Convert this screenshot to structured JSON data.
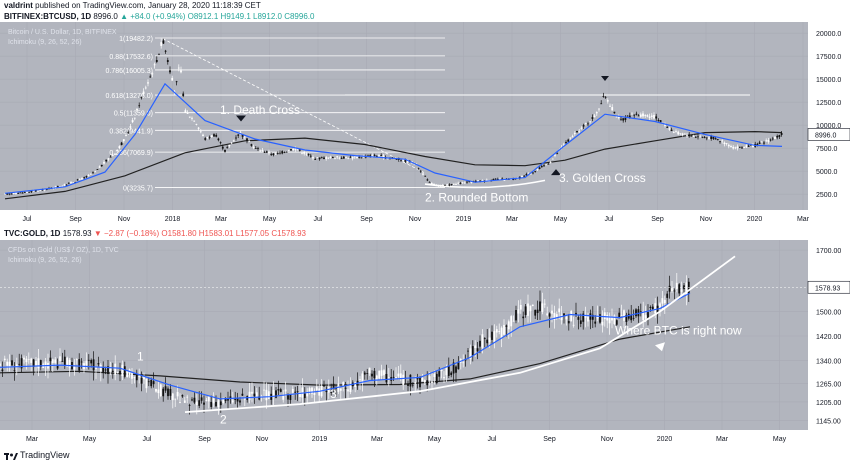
{
  "header": {
    "user": "valdrint",
    "published": "published on TradingView.com, January 28, 2020 11:18:39 CET"
  },
  "btc_header": {
    "symbol": "BITFINEX:BTCUSD, 1D",
    "last": "8996.0",
    "change": "+84.0 (+0.94%)",
    "o": "O8912.1",
    "h": "H9149.1",
    "l": "L8912.0",
    "c": "C8996.0"
  },
  "gold_header": {
    "symbol": "TVC:GOLD, 1D",
    "last": "1578.93",
    "change": "−2.87 (−0.18%)",
    "o": "O1581.80",
    "h": "H1583.01",
    "l": "L1577.05",
    "c": "C1578.93"
  },
  "footer": {
    "brand": "TradingView"
  },
  "colors": {
    "panel_bg": "#b2b5be",
    "ma_blue": "#2962ff",
    "ma_black": "#222222",
    "up": "#26a69a",
    "down": "#ef5350"
  },
  "chart_data": [
    {
      "type": "line",
      "name": "btc",
      "legend": [
        "Bitcoin / U.S. Dollar, 1D, BITFINEX",
        "Ichimoku (9, 26, 52, 26)"
      ],
      "x_ticks": [
        "Jul",
        "Sep",
        "Nov",
        "2018",
        "Mar",
        "May",
        "Jul",
        "Sep",
        "Nov",
        "2019",
        "Mar",
        "May",
        "Jul",
        "Sep",
        "Nov",
        "2020",
        "Mar"
      ],
      "y_ticks": [
        "20000.0",
        "17500.0",
        "15000.0",
        "12500.0",
        "10000.0",
        "7500.0",
        "5000.0",
        "2500.0"
      ],
      "ylim": [
        1000,
        21000
      ],
      "last_price_label": "8996.0",
      "fib_levels": [
        {
          "label": "1(19482.2)",
          "value": 19482.2
        },
        {
          "label": "0.88(17532.6)",
          "value": 17532.6
        },
        {
          "label": "0.786(16005.3)",
          "value": 16005.3
        },
        {
          "label": "0.618(13276.0)",
          "value": 13276.0
        },
        {
          "label": "0.5(11359.0)",
          "value": 11359.0
        },
        {
          "label": "0.382(9441.9)",
          "value": 9441.9
        },
        {
          "label": "0.236(7069.9)",
          "value": 7069.9
        },
        {
          "label": "0(3235.7)",
          "value": 3235.7
        }
      ],
      "annotations": [
        "1. Death Cross",
        "2. Rounded Bottom",
        "3. Golden Cross"
      ],
      "series": [
        {
          "name": "price",
          "x": [
            0,
            20,
            40,
            60,
            80,
            90,
            100,
            110,
            120,
            130,
            140,
            150,
            158,
            165,
            170,
            175,
            180,
            190,
            200,
            210,
            220,
            235,
            250,
            270,
            290,
            310,
            330,
            350,
            370,
            390,
            410,
            425,
            435,
            450,
            470,
            490,
            510,
            530,
            545,
            560,
            575,
            590,
            600,
            605,
            615,
            630,
            650,
            670,
            690,
            710,
            730,
            750,
            770,
            777
          ],
          "y": [
            2500,
            2700,
            3000,
            3500,
            4300,
            4900,
            6000,
            7000,
            8500,
            11000,
            14000,
            16500,
            19400,
            16000,
            13500,
            16800,
            11500,
            10500,
            8500,
            9000,
            7200,
            9200,
            7500,
            6800,
            7500,
            6400,
            6500,
            6500,
            6700,
            6400,
            5900,
            3700,
            3400,
            3600,
            3900,
            4100,
            4100,
            5000,
            6000,
            8000,
            9500,
            11000,
            13300,
            12200,
            10500,
            11200,
            10900,
            9200,
            8800,
            8600,
            7500,
            7800,
            8600,
            8996
          ]
        },
        {
          "name": "ma_fast",
          "x": [
            0,
            60,
            100,
            130,
            160,
            200,
            250,
            300,
            350,
            400,
            430,
            470,
            520,
            560,
            600,
            650,
            700,
            750,
            777
          ],
          "y": [
            2600,
            3300,
            4900,
            9000,
            14500,
            10500,
            8500,
            7300,
            6700,
            6300,
            4800,
            3800,
            4300,
            7800,
            11200,
            10400,
            9000,
            7800,
            7700
          ]
        },
        {
          "name": "ma_slow",
          "x": [
            0,
            60,
            120,
            180,
            240,
            300,
            360,
            420,
            470,
            520,
            560,
            600,
            650,
            700,
            750,
            777
          ],
          "y": [
            2000,
            2800,
            4500,
            7000,
            8300,
            8600,
            7900,
            6600,
            5700,
            5600,
            6200,
            7400,
            8300,
            9200,
            9300,
            9200
          ]
        }
      ]
    },
    {
      "type": "line",
      "name": "gold",
      "legend": [
        "CFDs on Gold (US$ / OZ), 1D, TVC",
        "Ichimoku (9, 26, 52, 26)"
      ],
      "x_ticks": [
        "Mar",
        "May",
        "Jul",
        "Sep",
        "Nov",
        "2019",
        "Mar",
        "May",
        "Jul",
        "Sep",
        "Nov",
        "2020",
        "Mar",
        "May"
      ],
      "y_ticks": [
        "1700.00",
        "1500.00",
        "1420.00",
        "1340.00",
        "1265.00",
        "1205.00",
        "1145.00"
      ],
      "ylim": [
        1120,
        1720
      ],
      "last_price_label": "1578.93",
      "annotations": [
        "1",
        "2",
        "3",
        "Where BTC is right now"
      ],
      "series": [
        {
          "name": "price",
          "x": [
            0,
            30,
            60,
            90,
            120,
            150,
            170,
            190,
            210,
            230,
            260,
            290,
            320,
            350,
            370,
            400,
            420,
            440,
            460,
            480,
            500,
            520,
            540,
            560,
            580,
            600,
            620,
            640,
            660,
            672,
            690
          ],
          "y": [
            1325,
            1330,
            1335,
            1325,
            1310,
            1260,
            1230,
            1200,
            1205,
            1210,
            1225,
            1230,
            1240,
            1255,
            1300,
            1280,
            1270,
            1290,
            1325,
            1400,
            1430,
            1500,
            1510,
            1490,
            1470,
            1475,
            1480,
            1485,
            1520,
            1570,
            1579
          ]
        },
        {
          "name": "ma_fast",
          "x": [
            0,
            60,
            120,
            170,
            220,
            270,
            320,
            370,
            420,
            470,
            520,
            570,
            620,
            660,
            690
          ],
          "y": [
            1318,
            1325,
            1315,
            1260,
            1215,
            1222,
            1240,
            1275,
            1285,
            1350,
            1450,
            1490,
            1480,
            1510,
            1560
          ]
        },
        {
          "name": "ma_slow",
          "x": [
            0,
            80,
            160,
            240,
            320,
            400,
            470,
            540,
            620,
            690
          ],
          "y": [
            1300,
            1305,
            1290,
            1270,
            1260,
            1262,
            1280,
            1330,
            1410,
            1450
          ]
        },
        {
          "name": "trendline",
          "x": [
            185,
            300,
            420,
            520,
            600,
            660,
            735
          ],
          "y": [
            1172,
            1198,
            1240,
            1300,
            1380,
            1500,
            1680
          ]
        }
      ]
    }
  ]
}
